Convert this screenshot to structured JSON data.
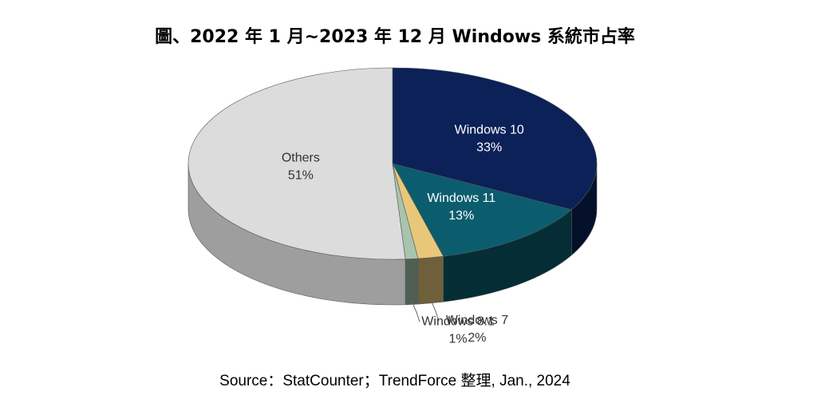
{
  "chart_data": {
    "type": "pie",
    "title": "圖、2022 年 1 月~2023 年 12 月 Windows 系統市占率",
    "slices": [
      {
        "name": "Windows 10",
        "value": 33,
        "percent_label": "33%",
        "color": "#0b2157"
      },
      {
        "name": "Windows 11",
        "value": 13,
        "percent_label": "13%",
        "color": "#0b5d6e"
      },
      {
        "name": "Windows 7",
        "value": 2,
        "percent_label": "2%",
        "color": "#e8c77a"
      },
      {
        "name": "Windows 8.1",
        "value": 1,
        "percent_label": "1%",
        "color": "#a8c4ad"
      },
      {
        "name": "Others",
        "value": 51,
        "percent_label": "51%",
        "color": "#dcdcdc"
      }
    ],
    "source": "Source：StatCounter；TrendForce 整理, Jan., 2024",
    "style": "3d"
  }
}
